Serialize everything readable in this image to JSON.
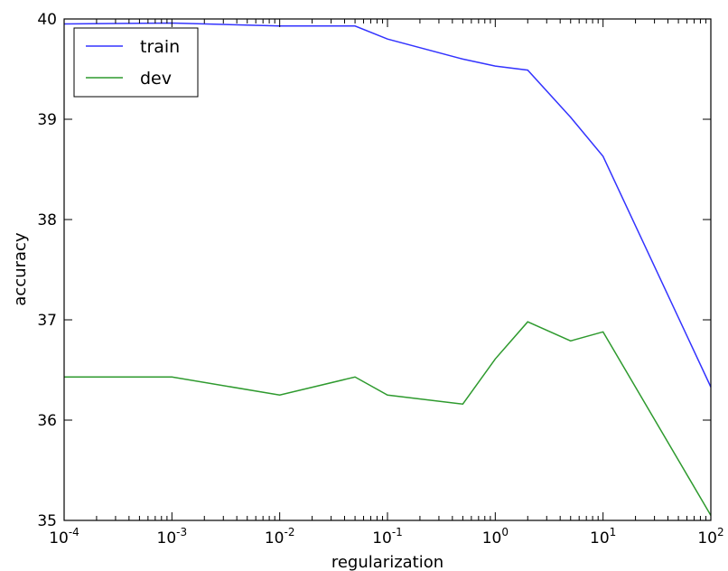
{
  "chart_data": {
    "type": "line",
    "xlabel": "regularization",
    "ylabel": "accuracy",
    "xscale": "log",
    "xlim": [
      0.0001,
      100
    ],
    "ylim": [
      35,
      40
    ],
    "xticks": [
      {
        "base": "10",
        "exp": "-4",
        "value": 0.0001
      },
      {
        "base": "10",
        "exp": "-3",
        "value": 0.001
      },
      {
        "base": "10",
        "exp": "-2",
        "value": 0.01
      },
      {
        "base": "10",
        "exp": "-1",
        "value": 0.1
      },
      {
        "base": "10",
        "exp": "0",
        "value": 1
      },
      {
        "base": "10",
        "exp": "1",
        "value": 10
      },
      {
        "base": "10",
        "exp": "2",
        "value": 100
      }
    ],
    "yticks": [
      {
        "label": "35",
        "value": 35
      },
      {
        "label": "36",
        "value": 36
      },
      {
        "label": "37",
        "value": 37
      },
      {
        "label": "38",
        "value": 38
      },
      {
        "label": "39",
        "value": 39
      },
      {
        "label": "40",
        "value": 40
      }
    ],
    "legend_position": "top-left",
    "grid": false,
    "series": [
      {
        "name": "train",
        "color": "#3333ff",
        "points": [
          {
            "x": 0.0001,
            "y": 39.95
          },
          {
            "x": 0.001,
            "y": 39.96
          },
          {
            "x": 0.01,
            "y": 39.93
          },
          {
            "x": 0.05,
            "y": 39.93
          },
          {
            "x": 0.1,
            "y": 39.8
          },
          {
            "x": 0.5,
            "y": 39.6
          },
          {
            "x": 1,
            "y": 39.53
          },
          {
            "x": 2,
            "y": 39.49
          },
          {
            "x": 5,
            "y": 39.02
          },
          {
            "x": 10,
            "y": 38.63
          },
          {
            "x": 100,
            "y": 36.33
          }
        ]
      },
      {
        "name": "dev",
        "color": "#2e9a2e",
        "points": [
          {
            "x": 0.0001,
            "y": 36.43
          },
          {
            "x": 0.001,
            "y": 36.43
          },
          {
            "x": 0.01,
            "y": 36.25
          },
          {
            "x": 0.05,
            "y": 36.43
          },
          {
            "x": 0.1,
            "y": 36.25
          },
          {
            "x": 0.5,
            "y": 36.16
          },
          {
            "x": 1,
            "y": 36.61
          },
          {
            "x": 2,
            "y": 36.98
          },
          {
            "x": 5,
            "y": 36.79
          },
          {
            "x": 10,
            "y": 36.88
          },
          {
            "x": 100,
            "y": 35.05
          }
        ]
      }
    ]
  }
}
